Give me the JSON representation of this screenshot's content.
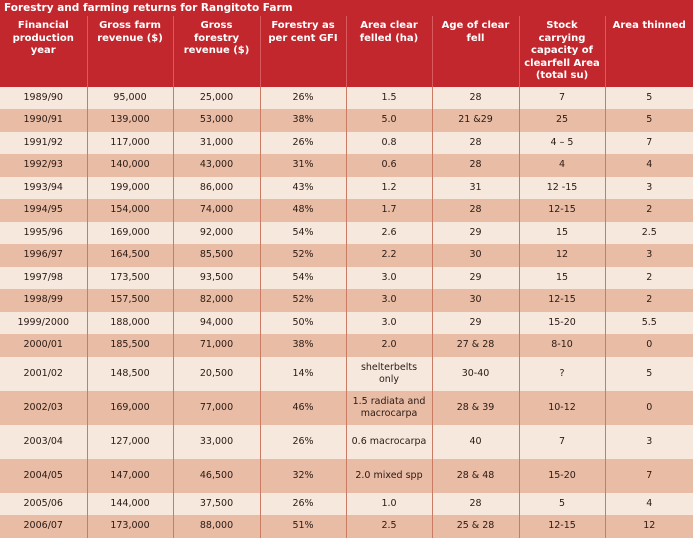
{
  "title": "Forestry and farming returns for Rangitoto Farm",
  "headers": [
    "Financial production year",
    "Gross farm revenue ($)",
    "Gross forestry revenue ($)",
    "Forestry as per cent GFI",
    "Area clear felled (ha)",
    "Age of clear fell",
    "Stock carrying capacity of clearfell Area (total su)",
    "Area thinned"
  ],
  "rows": [
    [
      "1989/90",
      "95,000",
      "25,000",
      "26%",
      "1.5",
      "28",
      "7",
      "5"
    ],
    [
      "1990/91",
      "139,000",
      "53,000",
      "38%",
      "5.0",
      "21 &29",
      "25",
      "5"
    ],
    [
      "1991/92",
      "117,000",
      "31,000",
      "26%",
      "0.8",
      "28",
      "4 – 5",
      "7"
    ],
    [
      "1992/93",
      "140,000",
      "43,000",
      "31%",
      "0.6",
      "28",
      "4",
      "4"
    ],
    [
      "1993/94",
      "199,000",
      "86,000",
      "43%",
      "1.2",
      "31",
      "12 -15",
      "3"
    ],
    [
      "1994/95",
      "154,000",
      "74,000",
      "48%",
      "1.7",
      "28",
      "12-15",
      "2"
    ],
    [
      "1995/96",
      "169,000",
      "92,000",
      "54%",
      "2.6",
      "29",
      "15",
      "2.5"
    ],
    [
      "1996/97",
      "164,500",
      "85,500",
      "52%",
      "2.2",
      "30",
      "12",
      "3"
    ],
    [
      "1997/98",
      "173,500",
      "93,500",
      "54%",
      "3.0",
      "29",
      "15",
      "2"
    ],
    [
      "1998/99",
      "157,500",
      "82,000",
      "52%",
      "3.0",
      "30",
      "12-15",
      "2"
    ],
    [
      "1999/2000",
      "188,000",
      "94,000",
      "50%",
      "3.0",
      "29",
      "15-20",
      "5.5"
    ],
    [
      "2000/01",
      "185,500",
      "71,000",
      "38%",
      "2.0",
      "27 & 28",
      "8-10",
      "0"
    ],
    [
      "2001/02",
      "148,500",
      "20,500",
      "14%",
      "shelterbelts only",
      "30-40",
      "?",
      "5"
    ],
    [
      "2002/03",
      "169,000",
      "77,000",
      "46%",
      "1.5 radiata and macrocarpa",
      "28 & 39",
      "10-12",
      "0"
    ],
    [
      "2003/04",
      "127,000",
      "33,000",
      "26%",
      "0.6 macrocarpa",
      "40",
      "7",
      "3"
    ],
    [
      "2004/05",
      "147,000",
      "46,500",
      "32%",
      "2.0 mixed spp",
      "28 & 48",
      "15-20",
      "7"
    ],
    [
      "2005/06",
      "144,000",
      "37,500",
      "26%",
      "1.0",
      "28",
      "5",
      "4"
    ],
    [
      "2006/07",
      "173,000",
      "88,000",
      "51%",
      "2.5",
      "25 & 28",
      "12-15",
      "12"
    ]
  ]
}
